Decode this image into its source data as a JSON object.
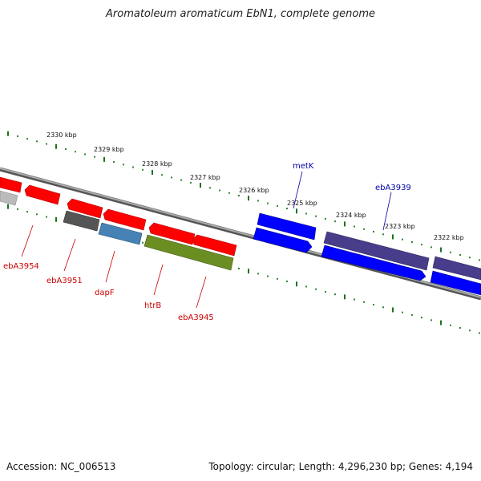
{
  "title": "Aromatoleum aromaticum EbN1, complete genome",
  "accession_text": "Accession: NC_006513",
  "summary_text": "Topology: circular; Length: 4,296,230 bp; Genes: 4,194",
  "scale_ticks": [
    {
      "label": "2330 kbp"
    },
    {
      "label": "2329 kbp"
    },
    {
      "label": "2328 kbp"
    },
    {
      "label": "2327 kbp"
    },
    {
      "label": "2326 kbp"
    },
    {
      "label": "2325 kbp"
    },
    {
      "label": "2324 kbp"
    },
    {
      "label": "2323 kbp"
    },
    {
      "label": "2322 kbp"
    }
  ],
  "gene_labels": [
    {
      "text": "ebA3954",
      "strand": "reverse"
    },
    {
      "text": "ebA3951",
      "strand": "reverse"
    },
    {
      "text": "dapF",
      "strand": "reverse"
    },
    {
      "text": "htrB",
      "strand": "reverse"
    },
    {
      "text": "ebA3945",
      "strand": "reverse"
    },
    {
      "text": "metK",
      "strand": "forward"
    },
    {
      "text": "ebA3939",
      "strand": "forward"
    }
  ],
  "colors": {
    "reverse_label": "#cc0000",
    "forward_label": "#0000aa",
    "red_feature": "#ff0000",
    "blue_feature": "#0000ff",
    "slate_feature": "#483d8b",
    "gray_feature": "#555555",
    "lightgray_feature": "#aaaaaa",
    "steelblue_feature": "#4682b4",
    "olive_feature": "#6b8e23",
    "backbone": "#777777",
    "tick": "#006400"
  }
}
